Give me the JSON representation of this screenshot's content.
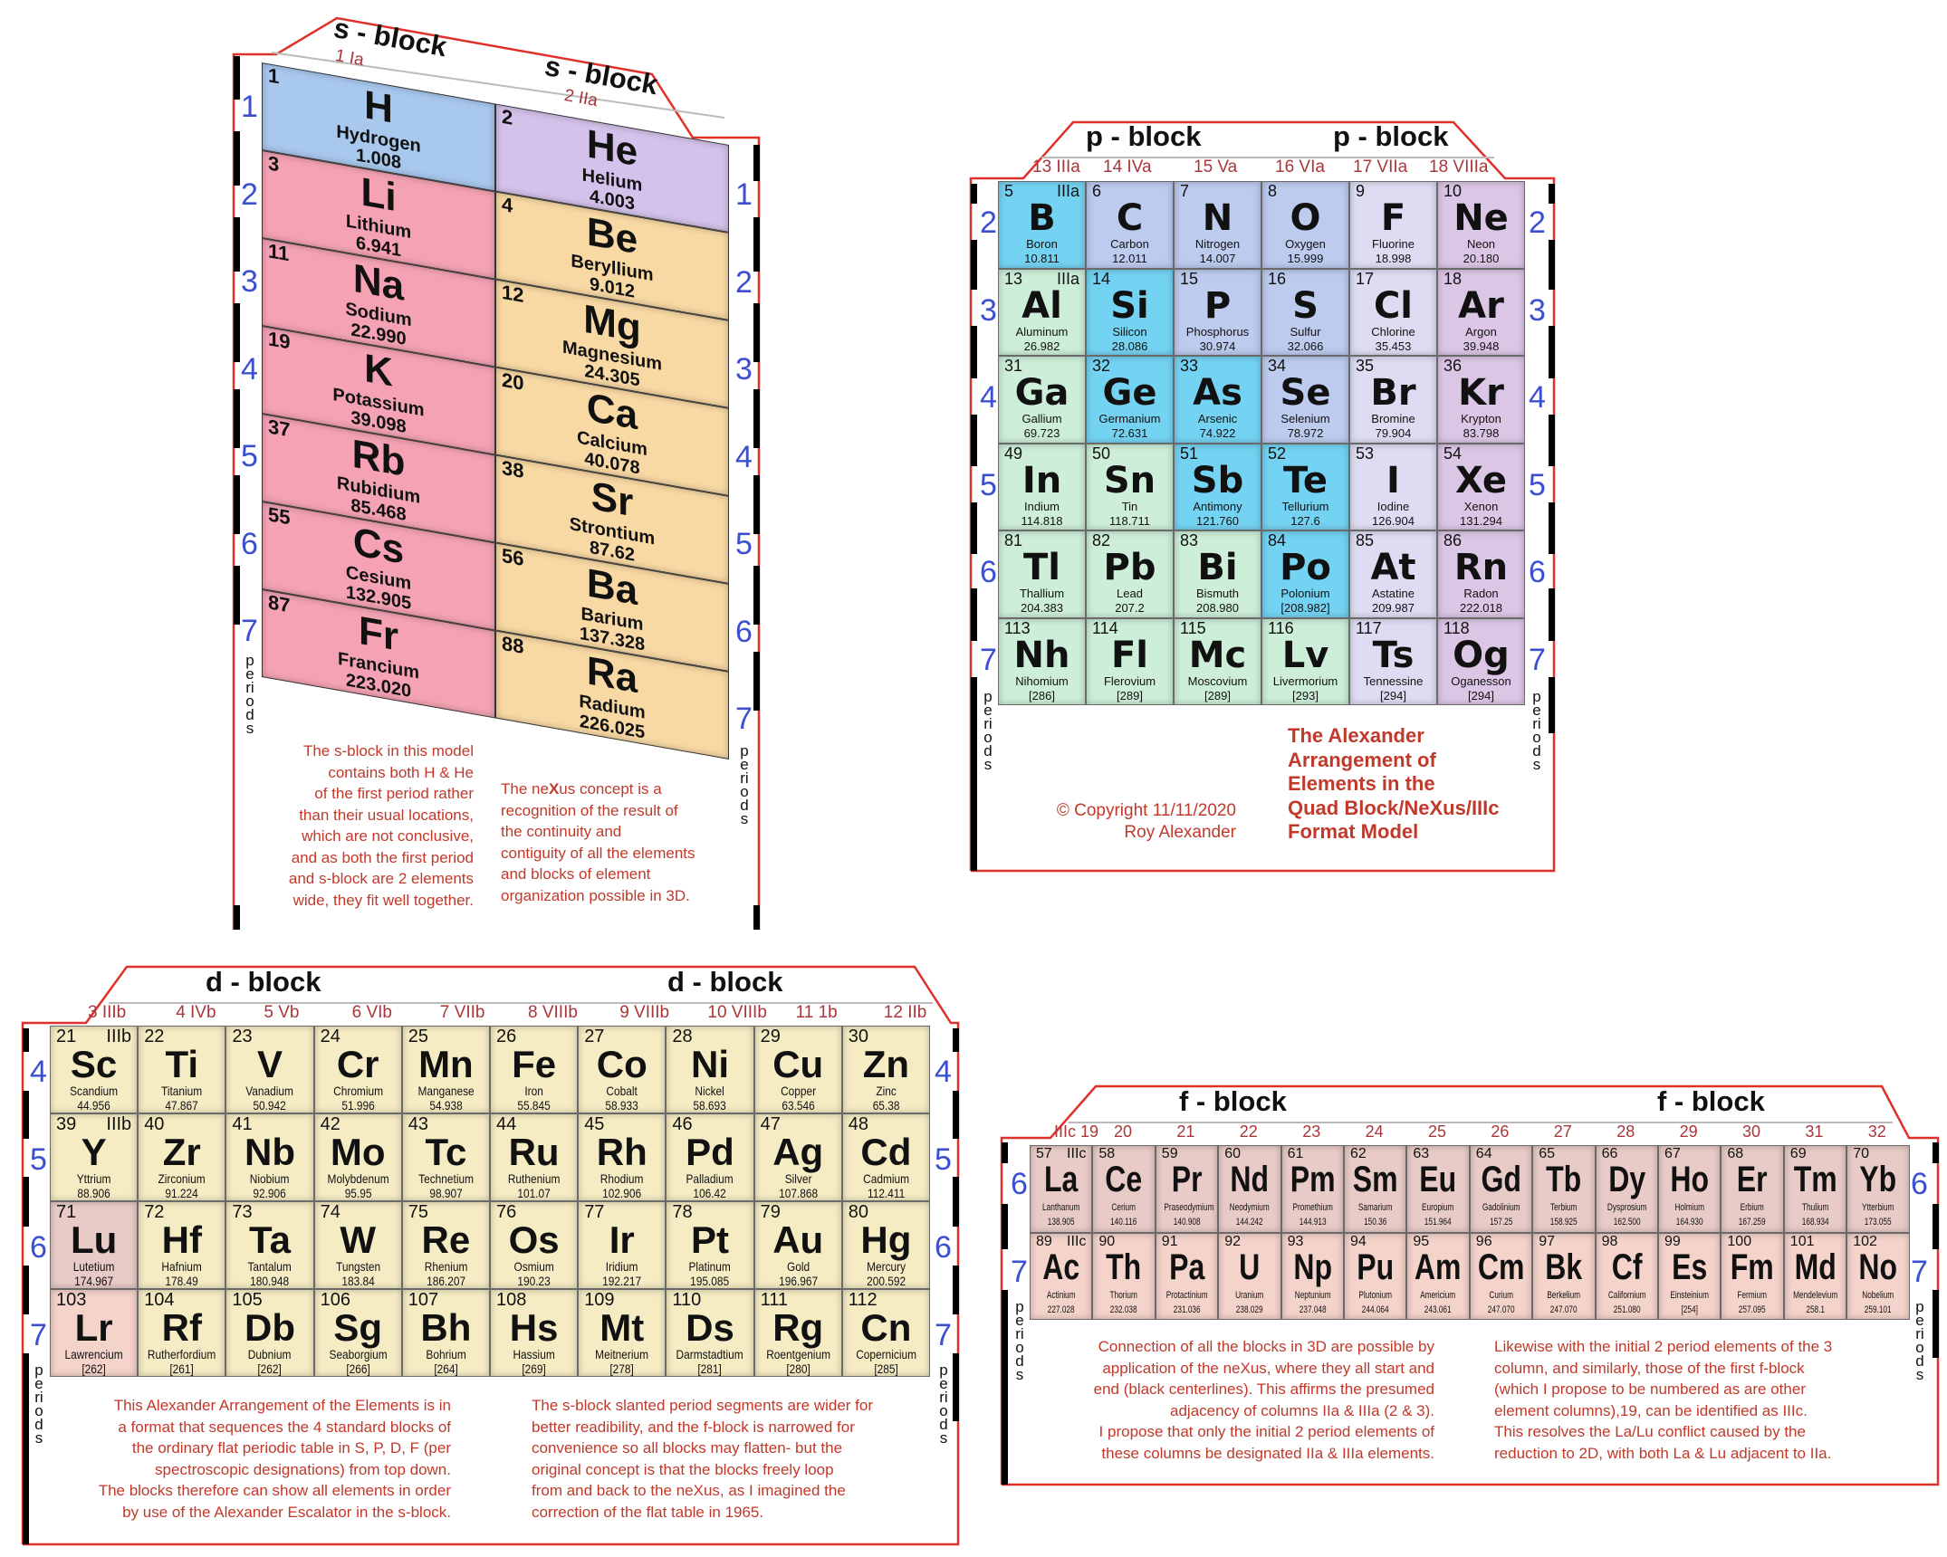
{
  "colors": {
    "frame_red": "#e0302a",
    "period_blue": "#3b4fd0",
    "text_red": "#c0392b",
    "hydrogen": "#a9c8ee",
    "helium": "#d4c2ea",
    "alkali": "#f5a3b4",
    "alkaline_earth": "#f8d9a4",
    "post_transition": "#cdeed8",
    "metalloid": "#74d3f2",
    "nonmetal": "#bccbee",
    "halogen": "#dedcf2",
    "noble_gas": "#dcc6e6",
    "transition": "#f6ecc4",
    "lu_lr_lanthanide": "#e8cbc6",
    "actinide": "#f4d3ca"
  },
  "s_block": {
    "headers": [
      "s - block",
      "s - block"
    ],
    "groups": [
      "1  Ia",
      "2  IIa"
    ],
    "periods_left": [
      "1",
      "2",
      "3",
      "4",
      "5",
      "6",
      "7"
    ],
    "periods_right": [
      "1",
      "2",
      "3",
      "4",
      "5",
      "6",
      "7"
    ],
    "periods_word": "periods",
    "col1": [
      {
        "num": "1",
        "sym": "H",
        "name": "Hydrogen",
        "mass": "1.008",
        "color": "hydrogen"
      },
      {
        "num": "3",
        "sym": "Li",
        "name": "Lithium",
        "mass": "6.941",
        "color": "alkali"
      },
      {
        "num": "11",
        "sym": "Na",
        "name": "Sodium",
        "mass": "22.990",
        "color": "alkali"
      },
      {
        "num": "19",
        "sym": "K",
        "name": "Potassium",
        "mass": "39.098",
        "color": "alkali"
      },
      {
        "num": "37",
        "sym": "Rb",
        "name": "Rubidium",
        "mass": "85.468",
        "color": "alkali"
      },
      {
        "num": "55",
        "sym": "Cs",
        "name": "Cesium",
        "mass": "132.905",
        "color": "alkali"
      },
      {
        "num": "87",
        "sym": "Fr",
        "name": "Francium",
        "mass": "223.020",
        "color": "alkali"
      }
    ],
    "col2": [
      {
        "num": "2",
        "sym": "He",
        "name": "Helium",
        "mass": "4.003",
        "color": "helium"
      },
      {
        "num": "4",
        "sym": "Be",
        "name": "Beryllium",
        "mass": "9.012",
        "color": "alkaline_earth"
      },
      {
        "num": "12",
        "sym": "Mg",
        "name": "Magnesium",
        "mass": "24.305",
        "color": "alkaline_earth"
      },
      {
        "num": "20",
        "sym": "Ca",
        "name": "Calcium",
        "mass": "40.078",
        "color": "alkaline_earth"
      },
      {
        "num": "38",
        "sym": "Sr",
        "name": "Strontium",
        "mass": "87.62",
        "color": "alkaline_earth"
      },
      {
        "num": "56",
        "sym": "Ba",
        "name": "Barium",
        "mass": "137.328",
        "color": "alkaline_earth"
      },
      {
        "num": "88",
        "sym": "Ra",
        "name": "Radium",
        "mass": "226.025",
        "color": "alkaline_earth"
      }
    ],
    "note_left": [
      "The s-block in this model",
      "contains both H & He",
      "of the first period rather",
      "than their usual locations,",
      "which are not conclusive,",
      "and as both the first period",
      "and s-block are 2 elements",
      "wide, they fit well together."
    ],
    "note_right": {
      "first_line": [
        "The ne",
        "X",
        "us concept is a"
      ],
      "lines": [
        "recognition of the result of",
        "the continuity and",
        "contiguity of all the elements",
        "and blocks of element",
        "organization possible in 3D."
      ]
    }
  },
  "p_block": {
    "headers": [
      "p - block",
      "p - block"
    ],
    "groups": [
      "13 IIIa",
      "14  IVa",
      "15  Va",
      "16  VIa",
      "17  VIIa",
      "18 VIIIa"
    ],
    "periods": [
      "2",
      "3",
      "4",
      "5",
      "6",
      "7"
    ],
    "periods_word": "periods",
    "rows": [
      [
        [
          "5",
          "B",
          "Boron",
          "10.811",
          "metalloid",
          "IIIa"
        ],
        [
          "6",
          "C",
          "Carbon",
          "12.011",
          "nonmetal"
        ],
        [
          "7",
          "N",
          "Nitrogen",
          "14.007",
          "nonmetal"
        ],
        [
          "8",
          "O",
          "Oxygen",
          "15.999",
          "nonmetal"
        ],
        [
          "9",
          "F",
          "Fluorine",
          "18.998",
          "halogen"
        ],
        [
          "10",
          "Ne",
          "Neon",
          "20.180",
          "noble_gas"
        ]
      ],
      [
        [
          "13",
          "Al",
          "Aluminum",
          "26.982",
          "post_transition",
          "IIIa"
        ],
        [
          "14",
          "Si",
          "Silicon",
          "28.086",
          "metalloid"
        ],
        [
          "15",
          "P",
          "Phosphorus",
          "30.974",
          "nonmetal"
        ],
        [
          "16",
          "S",
          "Sulfur",
          "32.066",
          "nonmetal"
        ],
        [
          "17",
          "Cl",
          "Chlorine",
          "35.453",
          "halogen"
        ],
        [
          "18",
          "Ar",
          "Argon",
          "39.948",
          "noble_gas"
        ]
      ],
      [
        [
          "31",
          "Ga",
          "Gallium",
          "69.723",
          "post_transition"
        ],
        [
          "32",
          "Ge",
          "Germanium",
          "72.631",
          "metalloid"
        ],
        [
          "33",
          "As",
          "Arsenic",
          "74.922",
          "metalloid"
        ],
        [
          "34",
          "Se",
          "Selenium",
          "78.972",
          "nonmetal"
        ],
        [
          "35",
          "Br",
          "Bromine",
          "79.904",
          "halogen"
        ],
        [
          "36",
          "Kr",
          "Krypton",
          "83.798",
          "noble_gas"
        ]
      ],
      [
        [
          "49",
          "In",
          "Indium",
          "114.818",
          "post_transition"
        ],
        [
          "50",
          "Sn",
          "Tin",
          "118.711",
          "post_transition"
        ],
        [
          "51",
          "Sb",
          "Antimony",
          "121.760",
          "metalloid"
        ],
        [
          "52",
          "Te",
          "Tellurium",
          "127.6",
          "metalloid"
        ],
        [
          "53",
          "I",
          "Iodine",
          "126.904",
          "halogen"
        ],
        [
          "54",
          "Xe",
          "Xenon",
          "131.294",
          "noble_gas"
        ]
      ],
      [
        [
          "81",
          "Tl",
          "Thallium",
          "204.383",
          "post_transition"
        ],
        [
          "82",
          "Pb",
          "Lead",
          "207.2",
          "post_transition"
        ],
        [
          "83",
          "Bi",
          "Bismuth",
          "208.980",
          "post_transition"
        ],
        [
          "84",
          "Po",
          "Polonium",
          "[208.982]",
          "metalloid"
        ],
        [
          "85",
          "At",
          "Astatine",
          "209.987",
          "halogen"
        ],
        [
          "86",
          "Rn",
          "Radon",
          "222.018",
          "noble_gas"
        ]
      ],
      [
        [
          "113",
          "Nh",
          "Nihomium",
          "[286]",
          "post_transition"
        ],
        [
          "114",
          "Fl",
          "Flerovium",
          "[289]",
          "post_transition"
        ],
        [
          "115",
          "Mc",
          "Moscovium",
          "[289]",
          "post_transition"
        ],
        [
          "116",
          "Lv",
          "Livermorium",
          "[293]",
          "post_transition"
        ],
        [
          "117",
          "Ts",
          "Tennessine",
          "[294]",
          "halogen"
        ],
        [
          "118",
          "Og",
          "Oganesson",
          "[294]",
          "noble_gas"
        ]
      ]
    ],
    "copyright": [
      "© Copyright 11/11/2020",
      "Roy Alexander"
    ],
    "title": [
      "The Alexander",
      "Arrangement of",
      "Elements in the",
      "Quad Block/NeXus/IIIc",
      "Format Model"
    ]
  },
  "d_block": {
    "headers": [
      "d - block",
      "d - block"
    ],
    "groups": [
      "3 IIIb",
      "4  IVb",
      "5  Vb",
      "6  VIb",
      "7 VIIb",
      "8  VIIIb",
      "9  VIIIb",
      "10  VIIIb",
      "11  1b",
      "12  IIb"
    ],
    "periods": [
      "4",
      "5",
      "6",
      "7"
    ],
    "periods_word": "periods",
    "rows": [
      [
        [
          "21",
          "Sc",
          "Scandium",
          "44.956",
          "transition",
          "IIIb"
        ],
        [
          "22",
          "Ti",
          "Titanium",
          "47.867",
          "transition"
        ],
        [
          "23",
          "V",
          "Vanadium",
          "50.942",
          "transition"
        ],
        [
          "24",
          "Cr",
          "Chromium",
          "51.996",
          "transition"
        ],
        [
          "25",
          "Mn",
          "Manganese",
          "54.938",
          "transition"
        ],
        [
          "26",
          "Fe",
          "Iron",
          "55.845",
          "transition"
        ],
        [
          "27",
          "Co",
          "Cobalt",
          "58.933",
          "transition"
        ],
        [
          "28",
          "Ni",
          "Nickel",
          "58.693",
          "transition"
        ],
        [
          "29",
          "Cu",
          "Copper",
          "63.546",
          "transition"
        ],
        [
          "30",
          "Zn",
          "Zinc",
          "65.38",
          "transition"
        ]
      ],
      [
        [
          "39",
          "Y",
          "Yttrium",
          "88.906",
          "transition",
          "IIIb"
        ],
        [
          "40",
          "Zr",
          "Zirconium",
          "91.224",
          "transition"
        ],
        [
          "41",
          "Nb",
          "Niobium",
          "92.906",
          "transition"
        ],
        [
          "42",
          "Mo",
          "Molybdenum",
          "95.95",
          "transition"
        ],
        [
          "43",
          "Tc",
          "Technetium",
          "98.907",
          "transition"
        ],
        [
          "44",
          "Ru",
          "Ruthenium",
          "101.07",
          "transition"
        ],
        [
          "45",
          "Rh",
          "Rhodium",
          "102.906",
          "transition"
        ],
        [
          "46",
          "Pd",
          "Palladium",
          "106.42",
          "transition"
        ],
        [
          "47",
          "Ag",
          "Silver",
          "107.868",
          "transition"
        ],
        [
          "48",
          "Cd",
          "Cadmium",
          "112.411",
          "transition"
        ]
      ],
      [
        [
          "71",
          "Lu",
          "Lutetium",
          "174.967",
          "lu_lr_lanthanide"
        ],
        [
          "72",
          "Hf",
          "Hafnium",
          "178.49",
          "transition"
        ],
        [
          "73",
          "Ta",
          "Tantalum",
          "180.948",
          "transition"
        ],
        [
          "74",
          "W",
          "Tungsten",
          "183.84",
          "transition"
        ],
        [
          "75",
          "Re",
          "Rhenium",
          "186.207",
          "transition"
        ],
        [
          "76",
          "Os",
          "Osmium",
          "190.23",
          "transition"
        ],
        [
          "77",
          "Ir",
          "Iridium",
          "192.217",
          "transition"
        ],
        [
          "78",
          "Pt",
          "Platinum",
          "195.085",
          "transition"
        ],
        [
          "79",
          "Au",
          "Gold",
          "196.967",
          "transition"
        ],
        [
          "80",
          "Hg",
          "Mercury",
          "200.592",
          "transition"
        ]
      ],
      [
        [
          "103",
          "Lr",
          "Lawrencium",
          "[262]",
          "actinide"
        ],
        [
          "104",
          "Rf",
          "Rutherfordium",
          "[261]",
          "transition"
        ],
        [
          "105",
          "Db",
          "Dubnium",
          "[262]",
          "transition"
        ],
        [
          "106",
          "Sg",
          "Seaborgium",
          "[266]",
          "transition"
        ],
        [
          "107",
          "Bh",
          "Bohrium",
          "[264]",
          "transition"
        ],
        [
          "108",
          "Hs",
          "Hassium",
          "[269]",
          "transition"
        ],
        [
          "109",
          "Mt",
          "Meitnerium",
          "[278]",
          "transition"
        ],
        [
          "110",
          "Ds",
          "Darmstadtium",
          "[281]",
          "transition"
        ],
        [
          "111",
          "Rg",
          "Roentgenium",
          "[280]",
          "transition"
        ],
        [
          "112",
          "Cn",
          "Copernicium",
          "[285]",
          "transition"
        ]
      ]
    ],
    "note_left": [
      "This Alexander Arrangement of the Elements is in",
      "a format that sequences the 4 standard blocks of",
      "the ordinary flat periodic table in S, P, D, F (per",
      "spectroscopic designations) from top down.",
      "The blocks therefore can show all elements in order",
      "by use of the Alexander Escalator in the s-block."
    ],
    "note_right": [
      "The s-block slanted period segments are wider for",
      "better readibility, and the f-block is narrowed for",
      "convenience so all blocks may flatten- but the",
      "original concept is that the blocks freely loop",
      "from and back to the neXus, as I imagined the",
      "correction of the flat table in 1965."
    ]
  },
  "f_block": {
    "headers": [
      "f - block",
      "f - block"
    ],
    "groups": [
      "IIIc 19",
      "20",
      "21",
      "22",
      "23",
      "24",
      "25",
      "26",
      "27",
      "28",
      "29",
      "30",
      "31",
      "32"
    ],
    "periods": [
      "6",
      "7"
    ],
    "periods_word": "periods",
    "rows": [
      [
        [
          "57",
          "La",
          "Lanthanum",
          "138.905",
          "lu_lr_lanthanide",
          "IIIc"
        ],
        [
          "58",
          "Ce",
          "Cerium",
          "140.116",
          "lu_lr_lanthanide"
        ],
        [
          "59",
          "Pr",
          "Praseodymium",
          "140.908",
          "lu_lr_lanthanide"
        ],
        [
          "60",
          "Nd",
          "Neodymium",
          "144.242",
          "lu_lr_lanthanide"
        ],
        [
          "61",
          "Pm",
          "Promethium",
          "144.913",
          "lu_lr_lanthanide"
        ],
        [
          "62",
          "Sm",
          "Samarium",
          "150.36",
          "lu_lr_lanthanide"
        ],
        [
          "63",
          "Eu",
          "Europium",
          "151.964",
          "lu_lr_lanthanide"
        ],
        [
          "64",
          "Gd",
          "Gadolinium",
          "157.25",
          "lu_lr_lanthanide"
        ],
        [
          "65",
          "Tb",
          "Terbium",
          "158.925",
          "lu_lr_lanthanide"
        ],
        [
          "66",
          "Dy",
          "Dysprosium",
          "162.500",
          "lu_lr_lanthanide"
        ],
        [
          "67",
          "Ho",
          "Holmium",
          "164.930",
          "lu_lr_lanthanide"
        ],
        [
          "68",
          "Er",
          "Erbium",
          "167.259",
          "lu_lr_lanthanide"
        ],
        [
          "69",
          "Tm",
          "Thulium",
          "168.934",
          "lu_lr_lanthanide"
        ],
        [
          "70",
          "Yb",
          "Ytterbium",
          "173.055",
          "lu_lr_lanthanide"
        ]
      ],
      [
        [
          "89",
          "Ac",
          "Actinium",
          "227.028",
          "actinide",
          "IIIc"
        ],
        [
          "90",
          "Th",
          "Thorium",
          "232.038",
          "actinide"
        ],
        [
          "91",
          "Pa",
          "Protactinium",
          "231.036",
          "actinide"
        ],
        [
          "92",
          "U",
          "Uranium",
          "238.029",
          "actinide"
        ],
        [
          "93",
          "Np",
          "Neptunium",
          "237.048",
          "actinide"
        ],
        [
          "94",
          "Pu",
          "Plutonium",
          "244.064",
          "actinide"
        ],
        [
          "95",
          "Am",
          "Americium",
          "243.061",
          "actinide"
        ],
        [
          "96",
          "Cm",
          "Curium",
          "247.070",
          "actinide"
        ],
        [
          "97",
          "Bk",
          "Berkelium",
          "247.070",
          "actinide"
        ],
        [
          "98",
          "Cf",
          "Californium",
          "251.080",
          "actinide"
        ],
        [
          "99",
          "Es",
          "Einsteinium",
          "[254]",
          "actinide"
        ],
        [
          "100",
          "Fm",
          "Fermium",
          "257.095",
          "actinide"
        ],
        [
          "101",
          "Md",
          "Mendelevium",
          "258.1",
          "actinide"
        ],
        [
          "102",
          "No",
          "Nobelium",
          "259.101",
          "actinide"
        ]
      ]
    ],
    "note_left": [
      "Connection of all the blocks in 3D are possible by",
      "application of the neXus, where they all start and",
      "end (black centerlines).  This affirms the presumed",
      "adjacency of columns IIa & IIIa (2 & 3).",
      "I propose that only the initial 2 period elements of",
      "these columns be designated IIa & IIIa elements."
    ],
    "note_right": [
      "Likewise with the initial 2 period elements of the 3",
      "column, and similarly, those of the first f-block",
      "(which I propose to be numbered as are other",
      "element columns),19, can be identified as IIIc.",
      "This resolves the La/Lu conflict caused by the",
      "reduction to 2D, with both La & Lu adjacent to IIa."
    ]
  }
}
